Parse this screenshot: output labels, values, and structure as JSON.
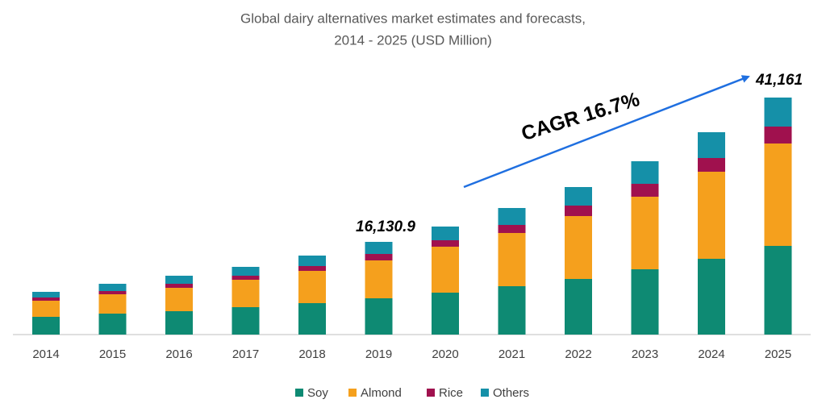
{
  "chart_data": {
    "type": "stacked_bar",
    "title": [
      "Global dairy alternatives market estimates and forecasts,",
      "2014 - 2025 (USD Million)"
    ],
    "categories": [
      "2014",
      "2015",
      "2016",
      "2017",
      "2018",
      "2019",
      "2020",
      "2021",
      "2022",
      "2023",
      "2024",
      "2025"
    ],
    "series": [
      {
        "name": "Soy",
        "color": "#0e8a73",
        "values": [
          3080,
          3640,
          4060,
          4760,
          5460,
          6300,
          7280,
          8400,
          9660,
          11340,
          13160,
          15400
        ]
      },
      {
        "name": "Almond",
        "color": "#f5a01d",
        "values": [
          2800,
          3360,
          4060,
          4760,
          5600,
          6580,
          7980,
          9240,
          10920,
          12600,
          15120,
          17780
        ]
      },
      {
        "name": "Rice",
        "color": "#a0114e",
        "values": [
          560,
          560,
          700,
          700,
          840,
          1120,
          1120,
          1400,
          1820,
          2240,
          2380,
          2940
        ]
      },
      {
        "name": "Others",
        "color": "#1590a8",
        "values": [
          980,
          1260,
          1400,
          1540,
          1820,
          2100,
          2380,
          2940,
          3220,
          3920,
          4480,
          5040
        ]
      }
    ],
    "ylim": [
      0,
      42000
    ],
    "annotations": [
      "16,130.9",
      "41,161",
      "CAGR 16.7%"
    ]
  }
}
